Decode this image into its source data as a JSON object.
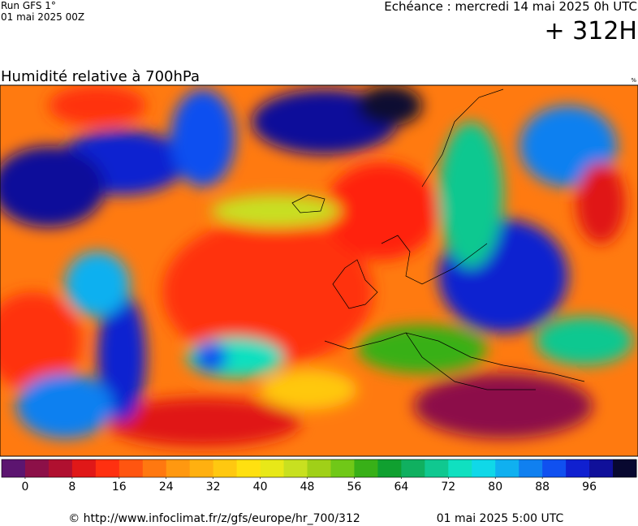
{
  "header": {
    "run": "Run GFS 1°",
    "run_date": "01 mai 2025 00Z",
    "valid": "Echéance : mercredi 14 mai 2025 0h UTC",
    "lead": "+ 312H"
  },
  "title": "Humidité relative à 700hPa",
  "unit": "%",
  "colorbar": {
    "range": [
      -4,
      104
    ],
    "ticks": [
      0,
      8,
      16,
      24,
      32,
      40,
      48,
      56,
      64,
      72,
      80,
      88,
      96
    ],
    "colors": [
      "#5c1570",
      "#8c1048",
      "#b01030",
      "#e01818",
      "#ff3010",
      "#ff5510",
      "#ff7810",
      "#ff9810",
      "#ffb010",
      "#ffc810",
      "#ffe010",
      "#e8e818",
      "#c8e020",
      "#a0d018",
      "#70c818",
      "#38b018",
      "#10a030",
      "#10b060",
      "#10c890",
      "#10e0c0",
      "#10d8e8",
      "#10b0f0",
      "#1080f0",
      "#1050f0",
      "#1020d0",
      "#10109a",
      "#080830"
    ]
  },
  "footer": {
    "url": "© http://www.infoclimat.fr/z/gfs/europe/hr_700/312",
    "generated": "01 mai 2025  5:00 UTC"
  }
}
